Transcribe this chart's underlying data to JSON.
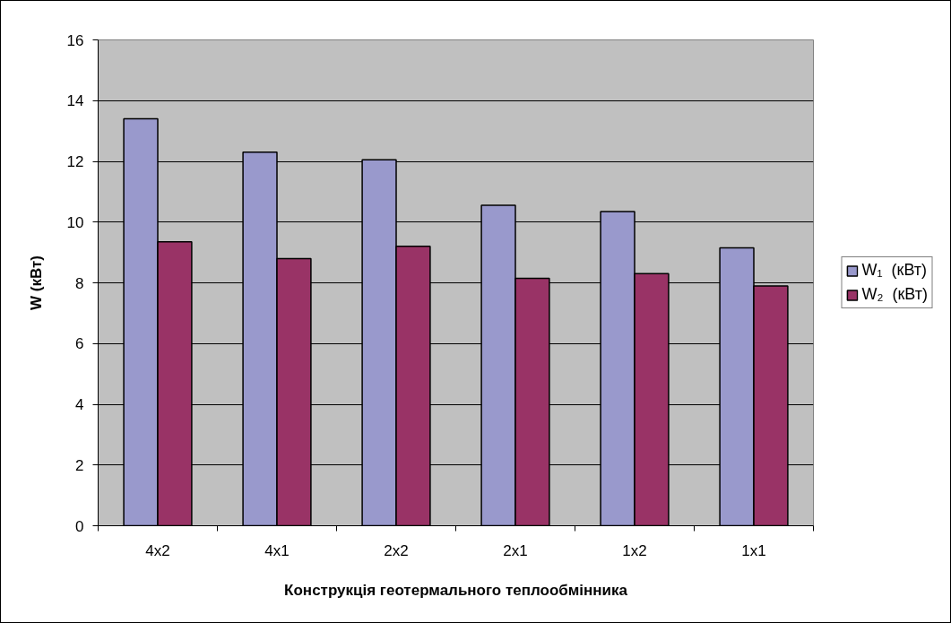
{
  "chart_data": {
    "type": "bar",
    "xlabel": "Конструкція геотермального теплообмінника",
    "ylabel": "W (кВт)",
    "categories": [
      "4x2",
      "4x1",
      "2x2",
      "2x1",
      "1x2",
      "1x1"
    ],
    "series": [
      {
        "name": "W₁  (кВт)",
        "color": "#9999cc",
        "values": [
          13.4,
          12.3,
          12.05,
          10.55,
          10.35,
          9.15
        ]
      },
      {
        "name": "W₂  (кВт)",
        "color": "#993366",
        "values": [
          9.35,
          8.8,
          9.2,
          8.15,
          8.3,
          7.9
        ]
      }
    ],
    "ylim": [
      0,
      16
    ],
    "yticks": [
      0,
      2,
      4,
      6,
      8,
      10,
      12,
      14,
      16
    ],
    "grid": "y",
    "legend": "right"
  }
}
